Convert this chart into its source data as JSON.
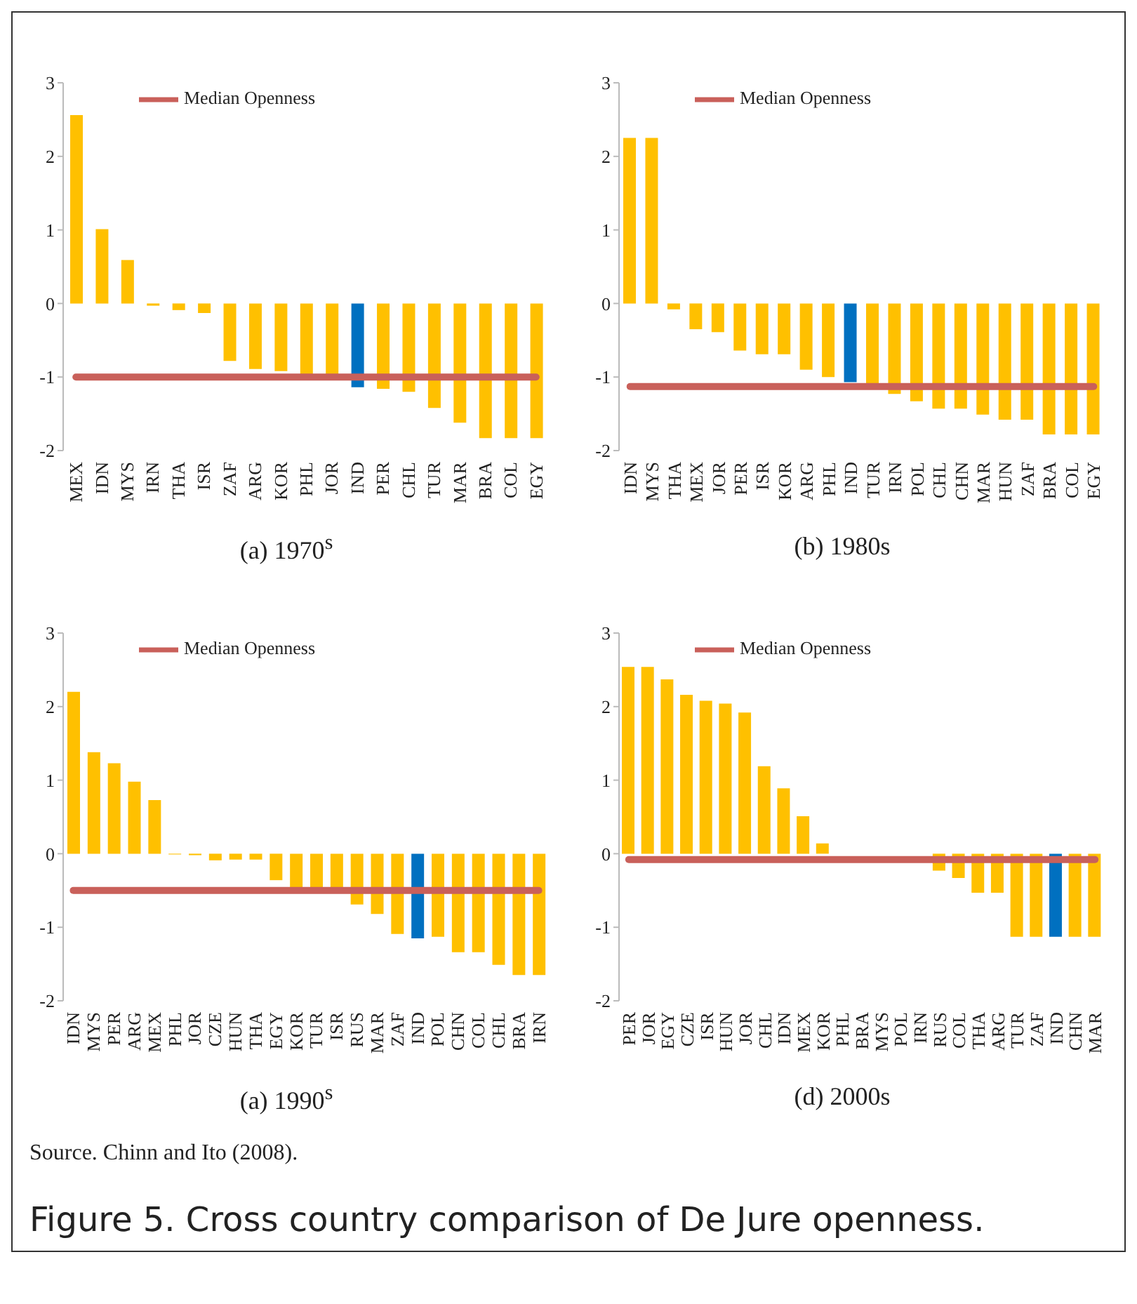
{
  "chart_data": [
    {
      "type": "bar",
      "xlabel": "(a) 1970$^{s}$",
      "categories": [
        "MEX",
        "IDN",
        "MYS",
        "IRN",
        "THA",
        "ISR",
        "ZAF",
        "ARG",
        "KOR",
        "PHL",
        "JOR",
        "IND",
        "PER",
        "CHL",
        "TUR",
        "MAR",
        "BRA",
        "COL",
        "EGY"
      ],
      "series": [
        {
          "type": "bar",
          "values": [
            2.56,
            1.01,
            0.59,
            -0.03,
            -0.09,
            -0.13,
            -0.78,
            -0.89,
            -0.92,
            -0.98,
            -0.98,
            -1.14,
            -1.16,
            -1.2,
            -1.42,
            -1.62,
            -1.83,
            -1.83,
            -1.83
          ],
          "colors": [
            "#ffc000",
            "#ffc000",
            "#ffc000",
            "#ffc000",
            "#ffc000",
            "#ffc000",
            "#ffc000",
            "#ffc000",
            "#ffc000",
            "#ffc000",
            "#ffc000",
            "#0070c0",
            "#ffc000",
            "#ffc000",
            "#ffc000",
            "#ffc000",
            "#ffc000",
            "#ffc000",
            "#ffc000"
          ]
        },
        {
          "type": "line",
          "name": "Median Openness",
          "color": "#c9605a",
          "values": [
            -1,
            -1,
            -1,
            -1,
            -1,
            -1,
            -1,
            -1,
            -1,
            -1,
            -1,
            -1,
            -1,
            -1,
            -1,
            -1,
            -1,
            -1,
            -1
          ]
        }
      ],
      "ylim": [
        -2,
        3
      ],
      "yticks": [
        -2,
        -1,
        0,
        1,
        2,
        3
      ],
      "legend": "top"
    },
    {
      "type": "bar",
      "xlabel": "(b) 1980s",
      "categories": [
        "IDN",
        "MYS",
        "THA",
        "MEX",
        "JOR",
        "PER",
        "ISR",
        "KOR",
        "ARG",
        "PHL",
        "IND",
        "TUR",
        "IRN",
        "POL",
        "CHL",
        "CHN",
        "MAR",
        "HUN",
        "ZAF",
        "BRA",
        "COL",
        "EGY"
      ],
      "series": [
        {
          "type": "bar",
          "values": [
            2.25,
            2.25,
            -0.08,
            -0.35,
            -0.39,
            -0.64,
            -0.69,
            -0.69,
            -0.9,
            -1.0,
            -1.07,
            -1.1,
            -1.23,
            -1.33,
            -1.43,
            -1.43,
            -1.51,
            -1.58,
            -1.58,
            -1.78,
            -1.78,
            -1.78
          ],
          "colors": [
            "#ffc000",
            "#ffc000",
            "#ffc000",
            "#ffc000",
            "#ffc000",
            "#ffc000",
            "#ffc000",
            "#ffc000",
            "#ffc000",
            "#ffc000",
            "#0070c0",
            "#ffc000",
            "#ffc000",
            "#ffc000",
            "#ffc000",
            "#ffc000",
            "#ffc000",
            "#ffc000",
            "#ffc000",
            "#ffc000",
            "#ffc000",
            "#ffc000"
          ]
        },
        {
          "type": "line",
          "name": "Median Openness",
          "color": "#c9605a",
          "values": [
            -1.13,
            -1.13,
            -1.13,
            -1.13,
            -1.13,
            -1.13,
            -1.13,
            -1.13,
            -1.13,
            -1.13,
            -1.13,
            -1.13,
            -1.13,
            -1.13,
            -1.13,
            -1.13,
            -1.13,
            -1.13,
            -1.13,
            -1.13,
            -1.13,
            -1.13
          ]
        }
      ],
      "ylim": [
        -2,
        3
      ],
      "yticks": [
        -2,
        -1,
        0,
        1,
        2,
        3
      ],
      "legend": "top"
    },
    {
      "type": "bar",
      "xlabel": "(a) 1990$^{s}$",
      "categories": [
        "IDN",
        "MYS",
        "PER",
        "ARG",
        "MEX",
        "PHL",
        "JOR",
        "CZE",
        "HUN",
        "THA",
        "EGY",
        "KOR",
        "TUR",
        "ISR",
        "RUS",
        "MAR",
        "ZAF",
        "IND",
        "POL",
        "CHN",
        "COL",
        "CHL",
        "BRA",
        "IRN"
      ],
      "series": [
        {
          "type": "bar",
          "values": [
            2.2,
            1.38,
            1.23,
            0.98,
            0.73,
            -0.01,
            -0.02,
            -0.09,
            -0.08,
            -0.08,
            -0.36,
            -0.5,
            -0.5,
            -0.5,
            -0.69,
            -0.82,
            -1.09,
            -1.15,
            -1.13,
            -1.34,
            -1.34,
            -1.51,
            -1.65,
            -1.65
          ],
          "colors": [
            "#ffc000",
            "#ffc000",
            "#ffc000",
            "#ffc000",
            "#ffc000",
            "#ffc000",
            "#ffc000",
            "#ffc000",
            "#ffc000",
            "#ffc000",
            "#ffc000",
            "#ffc000",
            "#ffc000",
            "#ffc000",
            "#ffc000",
            "#ffc000",
            "#ffc000",
            "#0070c0",
            "#ffc000",
            "#ffc000",
            "#ffc000",
            "#ffc000",
            "#ffc000",
            "#ffc000"
          ]
        },
        {
          "type": "line",
          "name": "Median Openness",
          "color": "#c9605a",
          "values": [
            -0.5,
            -0.5,
            -0.5,
            -0.5,
            -0.5,
            -0.5,
            -0.5,
            -0.5,
            -0.5,
            -0.5,
            -0.5,
            -0.5,
            -0.5,
            -0.5,
            -0.5,
            -0.5,
            -0.5,
            -0.5,
            -0.5,
            -0.5,
            -0.5,
            -0.5,
            -0.5,
            -0.5
          ]
        }
      ],
      "ylim": [
        -2,
        3
      ],
      "yticks": [
        -2,
        -1,
        0,
        1,
        2,
        3
      ],
      "legend": "top"
    },
    {
      "type": "bar",
      "xlabel": "(d) 2000s",
      "categories": [
        "PER",
        "JOR",
        "EGY",
        "CZE",
        "ISR",
        "HUN",
        "JOR",
        "CHL",
        "IDN",
        "MEX",
        "KOR",
        "PHL",
        "BRA",
        "MYS",
        "POL",
        "IRN",
        "RUS",
        "COL",
        "THA",
        "ARG",
        "TUR",
        "ZAF",
        "IND",
        "CHN",
        "MAR"
      ],
      "series": [
        {
          "type": "bar",
          "values": [
            2.54,
            2.54,
            2.37,
            2.16,
            2.08,
            2.04,
            1.92,
            1.19,
            0.89,
            0.51,
            0.14,
            null,
            null,
            null,
            null,
            null,
            -0.23,
            -0.33,
            -0.53,
            -0.53,
            -1.13,
            -1.13,
            -1.13,
            -1.13,
            -1.13
          ],
          "colors": [
            "#ffc000",
            "#ffc000",
            "#ffc000",
            "#ffc000",
            "#ffc000",
            "#ffc000",
            "#ffc000",
            "#ffc000",
            "#ffc000",
            "#ffc000",
            "#ffc000",
            "#ffc000",
            "#ffc000",
            "#ffc000",
            "#ffc000",
            "#ffc000",
            "#ffc000",
            "#ffc000",
            "#ffc000",
            "#ffc000",
            "#ffc000",
            "#ffc000",
            "#0070c0",
            "#ffc000",
            "#ffc000"
          ]
        },
        {
          "type": "line",
          "name": "Median Openness",
          "color": "#c9605a",
          "values": [
            -0.08,
            -0.08,
            -0.08,
            -0.08,
            -0.08,
            -0.08,
            -0.08,
            -0.08,
            -0.08,
            -0.08,
            -0.08,
            -0.08,
            -0.08,
            -0.08,
            -0.08,
            -0.08,
            -0.08,
            -0.08,
            -0.08,
            -0.08,
            -0.08,
            -0.08,
            -0.08,
            -0.08,
            -0.08
          ]
        }
      ],
      "ylim": [
        -2,
        3
      ],
      "yticks": [
        -2,
        -1,
        0,
        1,
        2,
        3
      ],
      "legend": "top"
    },
    {
      "type": "other",
      "annotations": [
        "Source. Chinn and Ito (2008).",
        "Figure 5. Cross country comparison of De Jure openness."
      ]
    }
  ]
}
